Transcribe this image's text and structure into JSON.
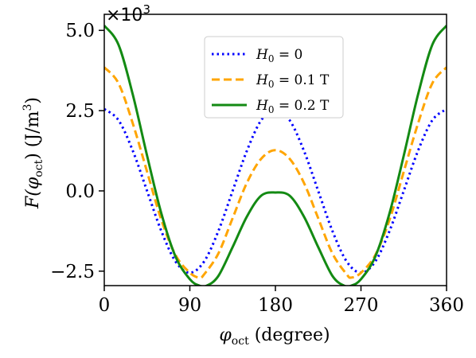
{
  "chart_data": {
    "type": "line",
    "xlabel": {
      "main": "φ",
      "sub": "oct",
      "rest": " (degree)"
    },
    "ylabel": {
      "pre": "F(φ",
      "sub": "oct",
      "post": ") (J/m",
      "sup": "3",
      "end": ")"
    },
    "y_scale_label": {
      "base": "×10",
      "exp": "3"
    },
    "xlim": [
      0,
      360
    ],
    "ylim": [
      -2.95,
      5.5
    ],
    "xticks": [
      0,
      90,
      180,
      270,
      360
    ],
    "xtick_labels": [
      "0",
      "90",
      "180",
      "270",
      "360"
    ],
    "yticks": [
      5.0,
      2.5,
      0.0,
      -2.5
    ],
    "ytick_labels": [
      "5.0",
      "2.5",
      "0.0",
      "−2.5"
    ],
    "grid": false,
    "legend_position": "top-center",
    "series": [
      {
        "name": "H0 = 0",
        "legend": {
          "sym": "H",
          "sub": "0",
          "rest": " = 0"
        },
        "color": "#0000ff",
        "style": "dotted",
        "x": [
          0,
          15,
          30,
          45,
          60,
          75,
          90,
          105,
          120,
          135,
          150,
          165,
          180,
          195,
          210,
          225,
          240,
          255,
          270,
          285,
          300,
          315,
          330,
          345,
          360
        ],
        "y": [
          2.55,
          2.2,
          1.25,
          0.0,
          -1.25,
          -2.2,
          -2.55,
          -2.2,
          -1.25,
          0.0,
          1.25,
          2.2,
          2.55,
          2.2,
          1.25,
          0.0,
          -1.25,
          -2.2,
          -2.55,
          -2.2,
          -1.25,
          0.0,
          1.25,
          2.2,
          2.55
        ]
      },
      {
        "name": "H0 = 0.1 T",
        "legend": {
          "sym": "H",
          "sub": "0",
          "rest": " = 0.1 T"
        },
        "color": "#ffa500",
        "style": "dashed",
        "x": [
          0,
          15,
          30,
          45,
          60,
          75,
          90,
          100,
          105,
          120,
          135,
          150,
          165,
          180,
          195,
          210,
          225,
          240,
          255,
          260,
          270,
          285,
          300,
          315,
          330,
          345,
          360
        ],
        "y": [
          3.85,
          3.35,
          2.1,
          0.6,
          -0.9,
          -2.0,
          -2.55,
          -2.7,
          -2.6,
          -1.95,
          -0.85,
          0.25,
          1.0,
          1.27,
          1.0,
          0.25,
          -0.85,
          -1.95,
          -2.6,
          -2.7,
          -2.55,
          -2.0,
          -0.9,
          0.6,
          2.1,
          3.35,
          3.85
        ]
      },
      {
        "name": "H0 = 0.2 T",
        "legend": {
          "sym": "H",
          "sub": "0",
          "rest": " = 0.2 T"
        },
        "color": "#138a13",
        "style": "solid",
        "x": [
          0,
          15,
          30,
          45,
          60,
          75,
          90,
          100,
          108,
          120,
          135,
          150,
          165,
          180,
          195,
          210,
          225,
          240,
          252,
          260,
          270,
          285,
          300,
          315,
          330,
          345,
          360
        ],
        "y": [
          5.15,
          4.55,
          3.0,
          1.1,
          -0.7,
          -2.05,
          -2.75,
          -2.95,
          -2.95,
          -2.65,
          -1.75,
          -0.8,
          -0.15,
          -0.05,
          -0.15,
          -0.8,
          -1.75,
          -2.65,
          -2.95,
          -2.95,
          -2.75,
          -2.05,
          -0.7,
          1.1,
          3.0,
          4.55,
          5.15
        ]
      }
    ]
  }
}
